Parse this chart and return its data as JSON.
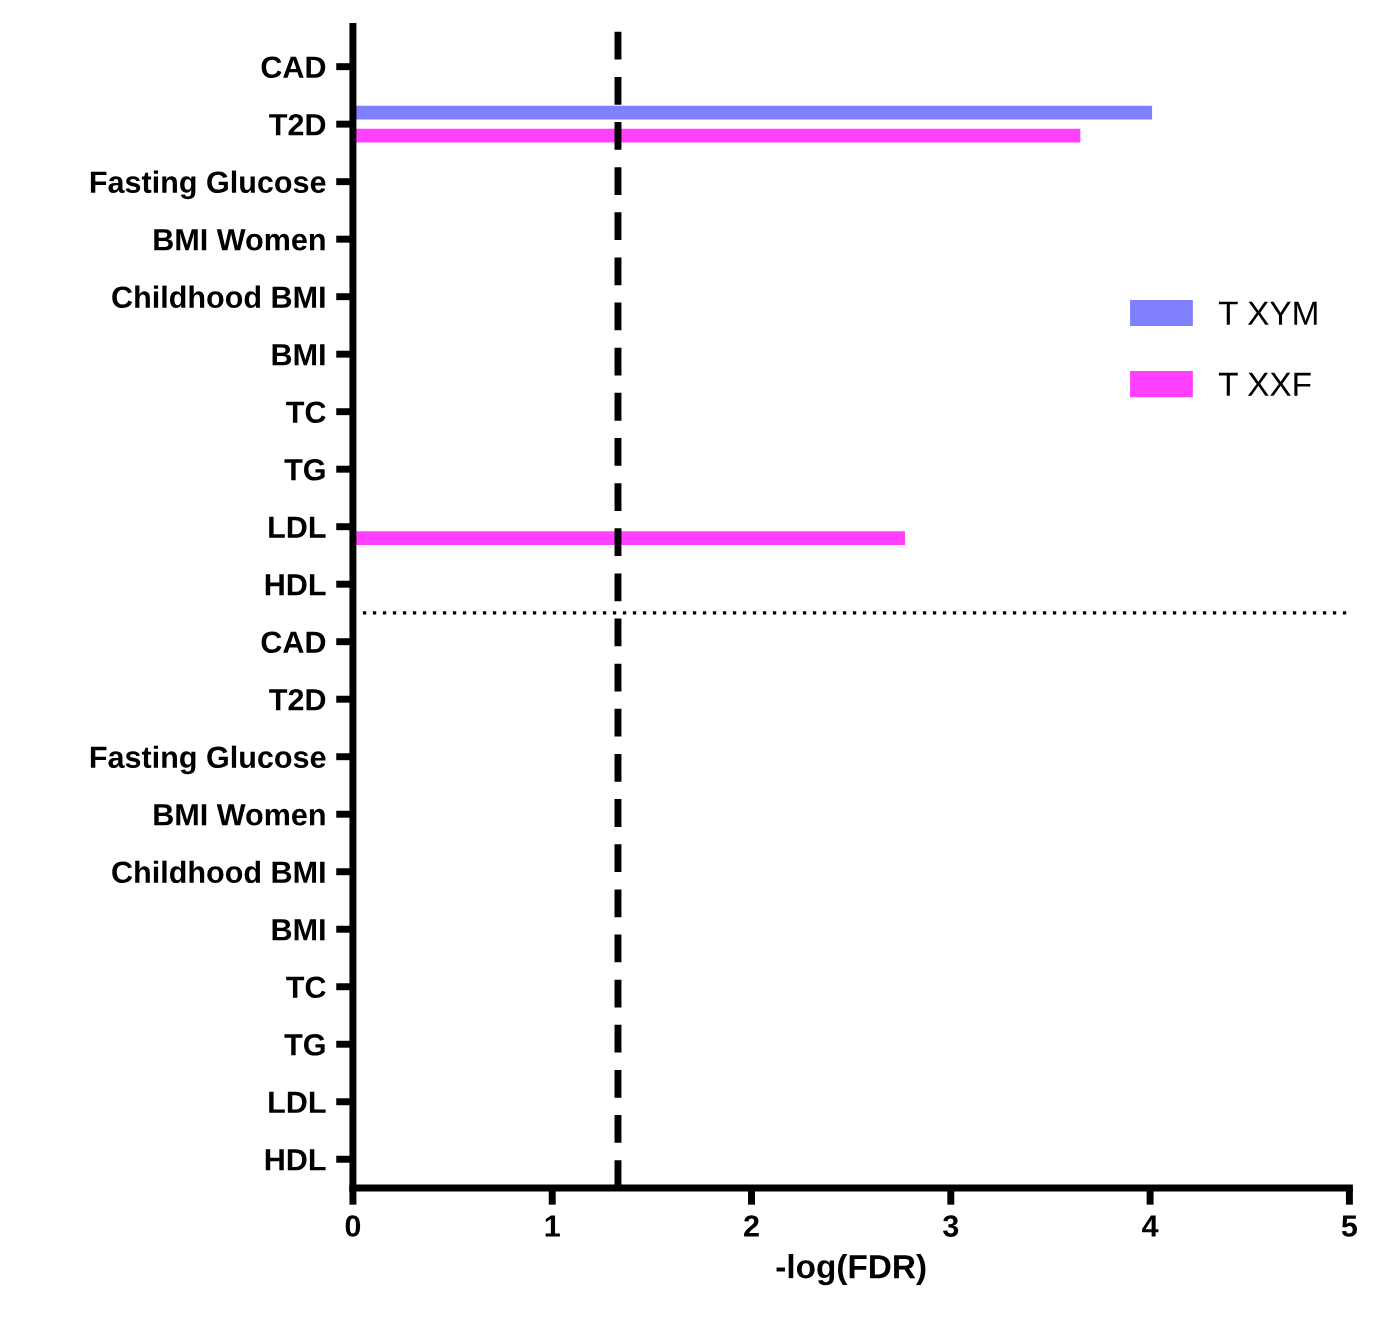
{
  "chart_data": {
    "type": "bar",
    "orientation": "horizontal",
    "xlabel": "-log(FDR)",
    "categories": [
      "CAD",
      "T2D",
      "Fasting Glucose",
      "BMI Women",
      "Childhood BMI",
      "BMI",
      "TC",
      "TG",
      "LDL",
      "HDL",
      "CAD",
      "T2D",
      "Fasting Glucose",
      "BMI Women",
      "Childhood BMI",
      "BMI",
      "TC",
      "TG",
      "LDL",
      "HDL"
    ],
    "series": [
      {
        "name": "T XYM",
        "color": "#7f7fff",
        "values": [
          null,
          4.01,
          null,
          null,
          null,
          null,
          null,
          null,
          null,
          null,
          null,
          null,
          null,
          null,
          null,
          null,
          null,
          null,
          null,
          null
        ]
      },
      {
        "name": "T XXF",
        "color": "#ff40ff",
        "values": [
          null,
          3.65,
          null,
          null,
          null,
          null,
          null,
          null,
          2.77,
          null,
          null,
          null,
          null,
          null,
          null,
          null,
          null,
          null,
          null,
          null
        ]
      }
    ],
    "xlim": [
      0,
      5
    ],
    "xticks": [
      0,
      1,
      2,
      3,
      4,
      5
    ],
    "ref_lines": [
      {
        "axis": "x",
        "value": 1.33,
        "label": null,
        "color": "#000000",
        "line_style": "dashed"
      }
    ],
    "grid": false,
    "legend": "right"
  }
}
